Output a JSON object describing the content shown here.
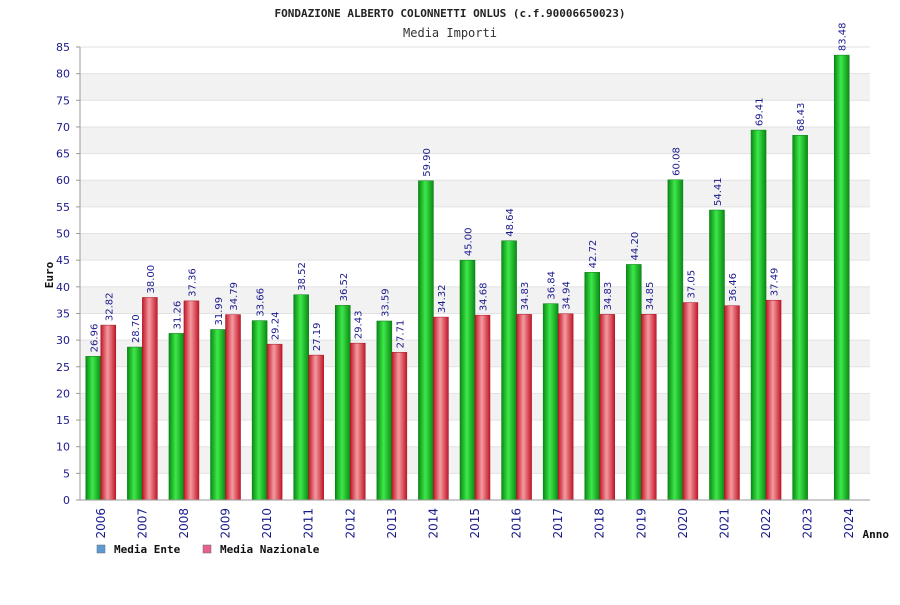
{
  "chart_data": {
    "type": "bar",
    "title": "FONDAZIONE ALBERTO COLONNETTI ONLUS (c.f.90006650023)",
    "subtitle": "Media Importi",
    "xlabel": "Anno",
    "ylabel": "Euro",
    "ylim": [
      0,
      85
    ],
    "yticks": [
      "0",
      "5",
      "10",
      "15",
      "20",
      "25",
      "30",
      "35",
      "40",
      "45",
      "50",
      "55",
      "60",
      "65",
      "70",
      "75",
      "80",
      "85"
    ],
    "grid": true,
    "legend_position": "bottom-left",
    "categories": [
      "2006",
      "2007",
      "2008",
      "2009",
      "2010",
      "2011",
      "2012",
      "2013",
      "2014",
      "2015",
      "2016",
      "2017",
      "2018",
      "2019",
      "2020",
      "2021",
      "2022",
      "2023",
      "2024"
    ],
    "series": [
      {
        "name": "Media Ente",
        "legend_color": "#5b9bd5",
        "bar_color": "#11b81f",
        "values": [
          26.96,
          28.7,
          31.26,
          31.99,
          33.66,
          38.52,
          36.52,
          33.59,
          59.9,
          45.0,
          48.64,
          36.84,
          42.72,
          44.2,
          60.08,
          54.41,
          69.41,
          68.43,
          83.48
        ],
        "labels": [
          "26.96",
          "28.70",
          "31.26",
          "31.99",
          "33.66",
          "38.52",
          "36.52",
          "33.59",
          "59.90",
          "45.00",
          "48.64",
          "36.84",
          "42.72",
          "44.20",
          "60.08",
          "54.41",
          "69.41",
          "68.43",
          "83.48"
        ]
      },
      {
        "name": "Media Nazionale",
        "legend_color": "#e8608c",
        "bar_color": "#e8303e",
        "values": [
          32.82,
          38.0,
          37.36,
          34.79,
          29.24,
          27.19,
          29.43,
          27.71,
          34.32,
          34.68,
          34.83,
          34.94,
          34.83,
          34.85,
          37.05,
          36.46,
          37.49,
          null,
          null
        ],
        "labels": [
          "32.82",
          "38.00",
          "37.36",
          "34.79",
          "29.24",
          "27.19",
          "29.43",
          "27.71",
          "34.32",
          "34.68",
          "34.83",
          "34.94",
          "34.83",
          "34.85",
          "37.05",
          "36.46",
          "37.49",
          "",
          ""
        ]
      }
    ]
  }
}
